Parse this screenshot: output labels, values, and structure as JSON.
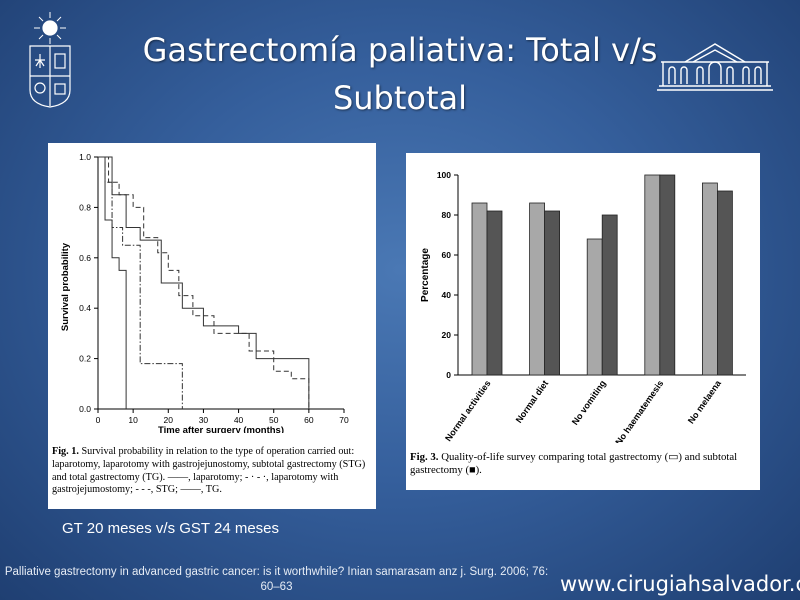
{
  "slide": {
    "title": "Gastrectomía paliativa: Total v/s Subtotal",
    "summary": "GT 20 meses v/s GST 24 meses",
    "reference": "Palliative gastrectomy in advanced gastric cancer: is it worthwhile? Inian samarasam anz j. Surg. 2006; 76: 60–63",
    "website": "www.cirugiahsalvador.cl"
  },
  "fig1": {
    "caption_label": "Fig. 1.",
    "caption_text": "Survival probability in relation to the type of operation carried out: laparotomy, laparotomy with gastrojejunostomy, subtotal gastrectomy (STG) and total gastrectomy (TG). ——, laparotomy; - · - ·, laparotomy with gastrojejumostomy; - - -, STG; ——, TG."
  },
  "fig3": {
    "caption_label": "Fig. 3.",
    "caption_text": "Quality-of-life survey comparing total gastrectomy (▭) and subtotal gastrectomy (■)."
  },
  "chart_data": [
    {
      "type": "line",
      "xlabel": "Time after surgery (months)",
      "ylabel": "Survival  probability",
      "xlim": [
        0,
        70
      ],
      "ylim": [
        0,
        1.0
      ],
      "x_ticks": [
        0,
        10,
        20,
        30,
        40,
        50,
        60,
        70
      ],
      "y_ticks": [
        "0.0",
        "0.2",
        "0.4",
        "0.6",
        "0.8",
        "1.0"
      ],
      "series": [
        {
          "style": "solid",
          "x": [
            0,
            2,
            2,
            4,
            4,
            6,
            6,
            8,
            8
          ],
          "y": [
            1.0,
            1.0,
            0.75,
            0.75,
            0.6,
            0.6,
            0.55,
            0.55,
            0.0
          ]
        },
        {
          "style": "dashdot",
          "x": [
            0,
            2,
            2,
            4,
            4,
            7,
            7,
            12,
            12,
            24,
            24
          ],
          "y": [
            1.0,
            1.0,
            0.9,
            0.9,
            0.72,
            0.72,
            0.65,
            0.65,
            0.18,
            0.18,
            0.0
          ]
        },
        {
          "style": "dashed",
          "x": [
            0,
            3,
            3,
            6,
            6,
            10,
            10,
            13,
            13,
            17,
            17,
            20,
            20,
            23,
            23,
            27,
            27,
            33,
            33,
            43,
            43,
            50,
            50,
            55,
            55,
            60,
            60
          ],
          "y": [
            1.0,
            1.0,
            0.9,
            0.9,
            0.85,
            0.85,
            0.8,
            0.8,
            0.68,
            0.68,
            0.62,
            0.62,
            0.55,
            0.55,
            0.45,
            0.45,
            0.37,
            0.37,
            0.3,
            0.3,
            0.23,
            0.23,
            0.15,
            0.15,
            0.12,
            0.12,
            0.0
          ]
        },
        {
          "style": "solid",
          "x": [
            0,
            4,
            4,
            8,
            8,
            12,
            12,
            18,
            18,
            24,
            24,
            30,
            30,
            40,
            40,
            45,
            45,
            60,
            60
          ],
          "y": [
            1.0,
            1.0,
            0.85,
            0.85,
            0.72,
            0.72,
            0.67,
            0.67,
            0.5,
            0.5,
            0.4,
            0.4,
            0.33,
            0.33,
            0.3,
            0.3,
            0.2,
            0.2,
            0.0
          ]
        }
      ]
    },
    {
      "type": "bar",
      "ylabel": "Percentage",
      "ylim": [
        0,
        100
      ],
      "y_ticks": [
        "0",
        "20",
        "40",
        "60",
        "80",
        "100"
      ],
      "categories": [
        "Normal activities",
        "Normal diet",
        "No vomiting",
        "No haematemesis",
        "No melaena"
      ],
      "series": [
        {
          "name": "total gastrectomy",
          "values": [
            86,
            86,
            68,
            100,
            96
          ]
        },
        {
          "name": "subtotal gastrectomy",
          "values": [
            82,
            82,
            80,
            100,
            92
          ]
        }
      ],
      "colors": [
        "#a8a8a8",
        "#555555"
      ]
    }
  ]
}
